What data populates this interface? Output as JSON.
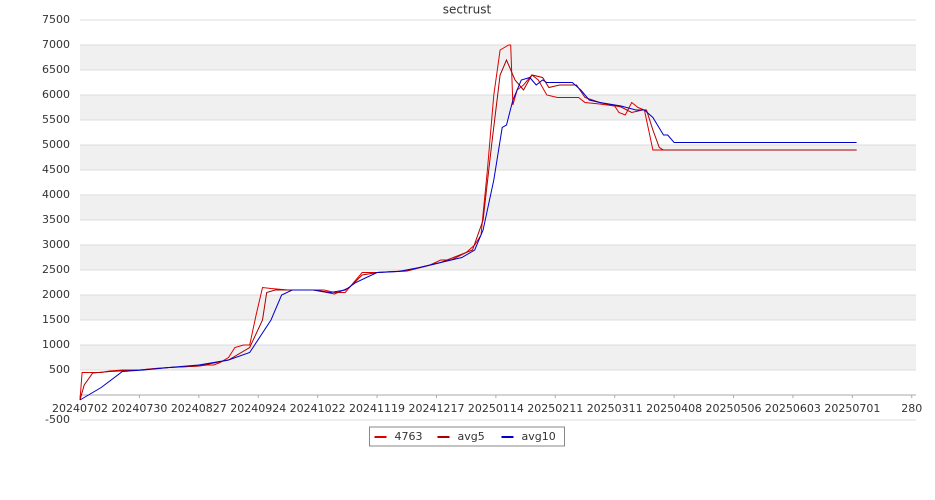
{
  "chart_data": {
    "type": "line",
    "title": "sectrust",
    "xlim": [
      0,
      394
    ],
    "xticks": [
      {
        "value": 0,
        "label": "20240702"
      },
      {
        "value": 28,
        "label": "20240730"
      },
      {
        "value": 56,
        "label": "20240827"
      },
      {
        "value": 84,
        "label": "20240924"
      },
      {
        "value": 112,
        "label": "20241022"
      },
      {
        "value": 140,
        "label": "20241119"
      },
      {
        "value": 168,
        "label": "20241217"
      },
      {
        "value": 196,
        "label": "20250114"
      },
      {
        "value": 224,
        "label": "20250211"
      },
      {
        "value": 252,
        "label": "20250311"
      },
      {
        "value": 280,
        "label": "20250408"
      },
      {
        "value": 308,
        "label": "20250506"
      },
      {
        "value": 336,
        "label": "20250603"
      },
      {
        "value": 364,
        "label": "20250701"
      },
      {
        "value": 392,
        "label": "280"
      }
    ],
    "ylim": [
      -500,
      7500
    ],
    "yticks": [
      -500,
      500,
      1000,
      1500,
      2000,
      2500,
      3000,
      3500,
      4000,
      4500,
      5000,
      5500,
      6000,
      6500,
      7000,
      7500
    ],
    "grid": true,
    "series": [
      {
        "name": "4763",
        "color": "#dd0000",
        "x": [
          0,
          1,
          10,
          14,
          20,
          28,
          35,
          42,
          56,
          60,
          63,
          66,
          70,
          73,
          77,
          80,
          83,
          86,
          90,
          98,
          115,
          120,
          125,
          130,
          133,
          140,
          147,
          154,
          160,
          165,
          170,
          175,
          182,
          186,
          189,
          192,
          195,
          198,
          200,
          202,
          203,
          204,
          206,
          209,
          213,
          216,
          220,
          225,
          235,
          238,
          245,
          252,
          254,
          257,
          260,
          263,
          266,
          270,
          273,
          366
        ],
        "values": [
          -100,
          450,
          450,
          480,
          500,
          500,
          530,
          550,
          580,
          600,
          600,
          650,
          750,
          950,
          1000,
          1000,
          1600,
          2150,
          2130,
          2100,
          2100,
          2050,
          2050,
          2300,
          2450,
          2450,
          2470,
          2480,
          2550,
          2600,
          2700,
          2700,
          2850,
          3000,
          3200,
          4500,
          6000,
          6900,
          6950,
          7000,
          7000,
          5800,
          6100,
          6200,
          6400,
          6300,
          6000,
          5950,
          5950,
          5850,
          5820,
          5780,
          5650,
          5600,
          5850,
          5750,
          5700,
          4900,
          4900,
          4900
        ]
      },
      {
        "name": "avg5",
        "color": "#aa0000",
        "x": [
          0,
          2,
          6,
          14,
          28,
          42,
          56,
          70,
          80,
          86,
          88,
          92,
          110,
          120,
          127,
          133,
          140,
          154,
          170,
          185,
          190,
          194,
          198,
          201,
          205,
          209,
          213,
          218,
          221,
          226,
          234,
          238,
          245,
          255,
          260,
          265,
          267,
          270,
          273,
          275,
          366
        ],
        "values": [
          -100,
          200,
          440,
          470,
          500,
          550,
          580,
          700,
          950,
          1500,
          2050,
          2100,
          2100,
          2020,
          2150,
          2400,
          2450,
          2480,
          2650,
          2900,
          3500,
          5000,
          6400,
          6700,
          6300,
          6100,
          6400,
          6350,
          6150,
          6200,
          6200,
          5950,
          5850,
          5760,
          5650,
          5700,
          5700,
          5300,
          4950,
          4900,
          4900
        ]
      },
      {
        "name": "avg10",
        "color": "#0000cc",
        "x": [
          0,
          10,
          20,
          30,
          42,
          56,
          70,
          80,
          90,
          95,
          100,
          110,
          118,
          125,
          130,
          135,
          140,
          150,
          160,
          170,
          180,
          186,
          190,
          195,
          199,
          201,
          204,
          208,
          212,
          215,
          218,
          220,
          232,
          236,
          240,
          245,
          255,
          262,
          266,
          270,
          275,
          277,
          280,
          366
        ],
        "values": [
          -100,
          150,
          470,
          500,
          550,
          600,
          700,
          850,
          1500,
          2000,
          2100,
          2100,
          2050,
          2100,
          2250,
          2350,
          2450,
          2470,
          2550,
          2650,
          2750,
          2900,
          3300,
          4300,
          5350,
          5400,
          5900,
          6300,
          6350,
          6200,
          6300,
          6250,
          6250,
          6100,
          5900,
          5850,
          5780,
          5700,
          5700,
          5550,
          5200,
          5200,
          5050,
          5050
        ]
      }
    ]
  }
}
